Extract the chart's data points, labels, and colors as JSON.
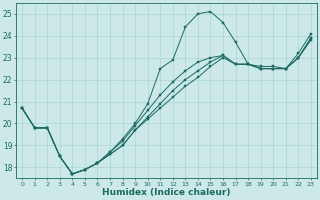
{
  "xlabel": "Humidex (Indice chaleur)",
  "ylabel": "",
  "bg_color": "#cce8e8",
  "grid_color": "#aad4d4",
  "line_color": "#1a6b60",
  "xlim": [
    -0.5,
    23.5
  ],
  "ylim": [
    17.5,
    25.5
  ],
  "yticks": [
    18,
    19,
    20,
    21,
    22,
    23,
    24,
    25
  ],
  "xticks": [
    0,
    1,
    2,
    3,
    4,
    5,
    6,
    7,
    8,
    9,
    10,
    11,
    12,
    13,
    14,
    15,
    16,
    17,
    18,
    19,
    20,
    21,
    22,
    23
  ],
  "series": [
    [
      20.7,
      19.8,
      19.8,
      18.5,
      17.7,
      17.9,
      18.2,
      18.7,
      19.3,
      20.0,
      20.9,
      22.5,
      22.9,
      24.4,
      25.0,
      25.1,
      24.6,
      23.7,
      22.7,
      22.6,
      22.6,
      22.5,
      23.2,
      24.1
    ],
    [
      20.7,
      19.8,
      19.8,
      18.5,
      17.7,
      17.9,
      18.2,
      18.6,
      19.0,
      19.7,
      20.2,
      20.7,
      21.2,
      21.7,
      22.1,
      22.6,
      23.0,
      22.7,
      22.7,
      22.5,
      22.5,
      22.5,
      23.0,
      23.8
    ],
    [
      20.7,
      19.8,
      19.8,
      18.5,
      17.7,
      17.9,
      18.2,
      18.6,
      19.0,
      19.7,
      20.3,
      20.9,
      21.5,
      22.0,
      22.4,
      22.8,
      23.1,
      22.7,
      22.7,
      22.5,
      22.5,
      22.5,
      23.0,
      23.9
    ],
    [
      20.7,
      19.8,
      19.8,
      18.5,
      17.7,
      17.9,
      18.2,
      18.7,
      19.2,
      19.9,
      20.6,
      21.3,
      21.9,
      22.4,
      22.8,
      23.0,
      23.1,
      22.7,
      22.7,
      22.5,
      22.5,
      22.5,
      23.0,
      23.9
    ]
  ]
}
